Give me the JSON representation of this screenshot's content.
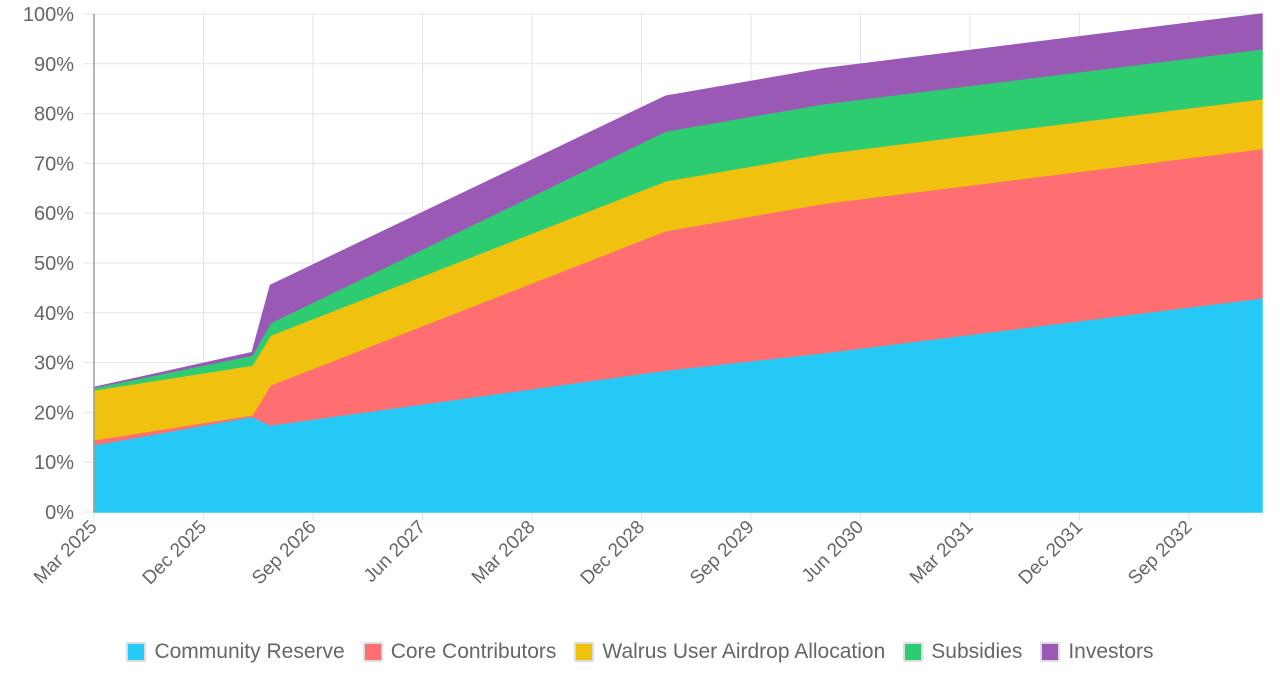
{
  "chart_data": {
    "type": "area",
    "stacked": true,
    "title": "",
    "xlabel": "",
    "ylabel": "",
    "ylim": [
      0,
      100
    ],
    "y_ticks": [
      "0%",
      "10%",
      "20%",
      "30%",
      "40%",
      "50%",
      "60%",
      "70%",
      "80%",
      "90%",
      "100%"
    ],
    "x_ticks": [
      "Mar 2025",
      "Dec 2025",
      "Sep 2026",
      "Jun 2027",
      "Mar 2028",
      "Dec 2028",
      "Sep 2029",
      "Jun 2030",
      "Mar 2031",
      "Dec 2031",
      "Sep 2032"
    ],
    "x_months_since_start": [
      0,
      13,
      14.5,
      47,
      60,
      96
    ],
    "x": [
      "Mar 2025",
      "Apr 2026",
      "May 2026",
      "Feb 2029",
      "Mar 2030",
      "Mar 2033"
    ],
    "grid": true,
    "legend_position": "bottom",
    "series": [
      {
        "name": "Community Reserve",
        "color": "#26c9f5",
        "values": [
          13.5,
          19.2,
          17.5,
          28.5,
          32,
          43
        ]
      },
      {
        "name": "Core Contributors",
        "color": "#ff6f71",
        "values": [
          1,
          0.3,
          8,
          28,
          30,
          30
        ]
      },
      {
        "name": "Walrus User Airdrop Allocation",
        "color": "#f0c20f",
        "values": [
          10,
          10,
          10,
          10,
          10,
          10
        ]
      },
      {
        "name": "Subsidies",
        "color": "#2ecc71",
        "values": [
          0.5,
          2,
          2.5,
          10,
          10,
          10
        ]
      },
      {
        "name": "Investors",
        "color": "#9b59b6",
        "values": [
          0,
          0.5,
          7.5,
          7,
          7,
          7
        ]
      }
    ]
  }
}
